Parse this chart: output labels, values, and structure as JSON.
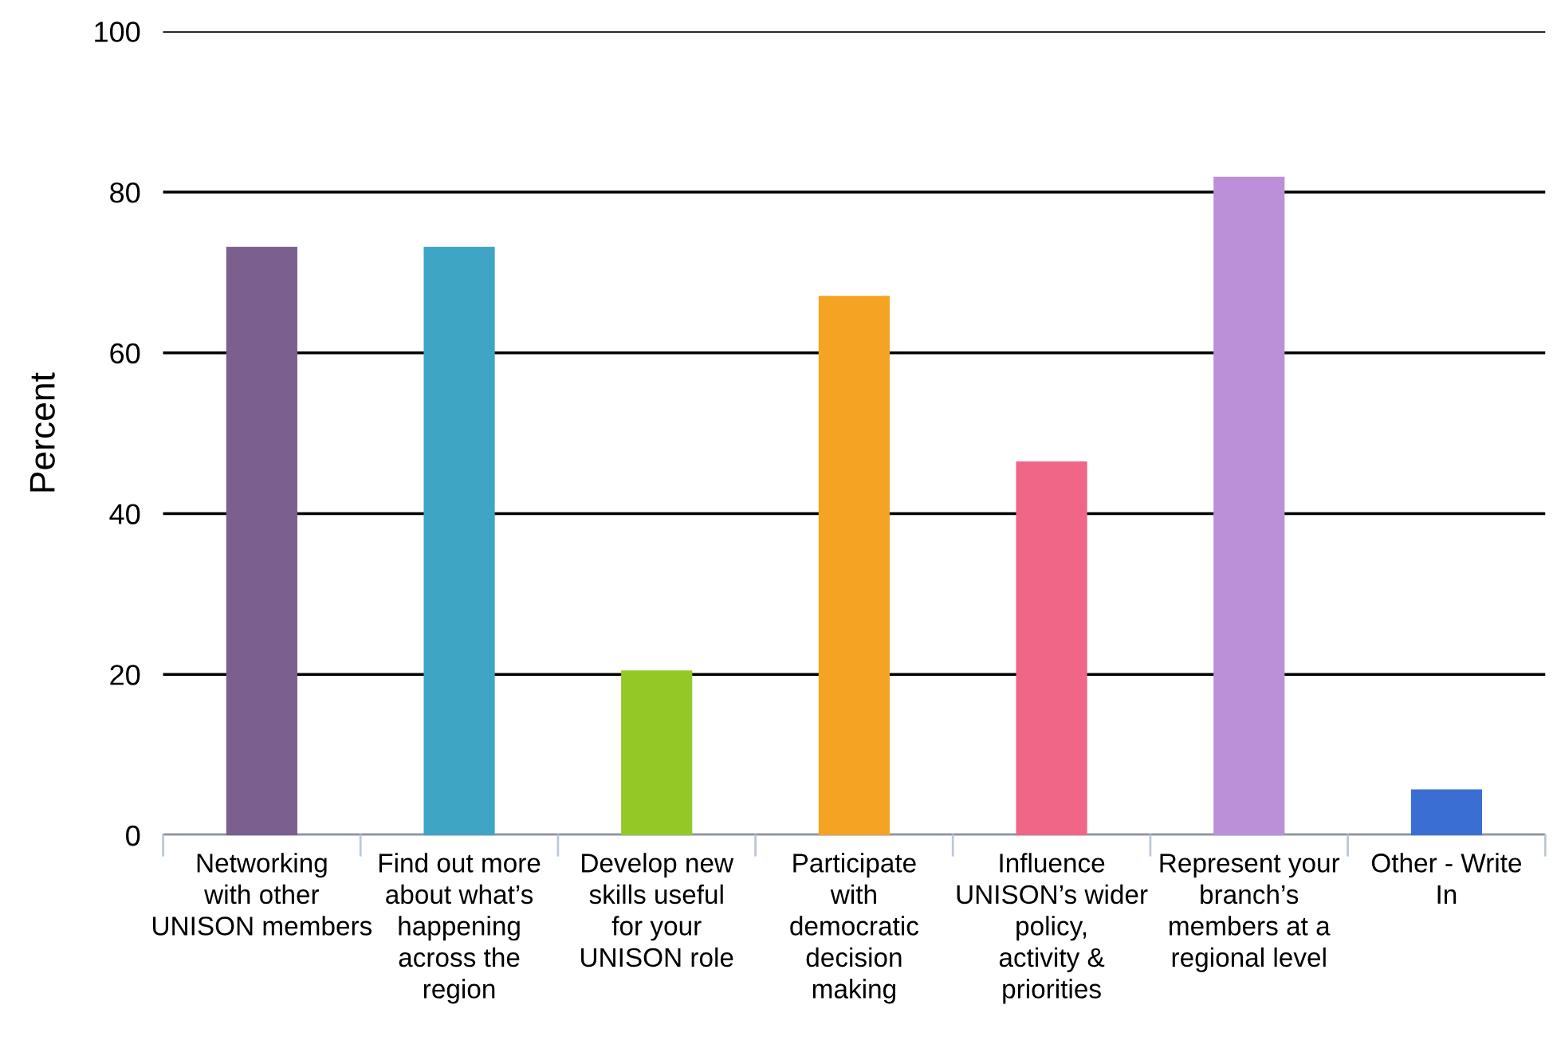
{
  "chart_data": {
    "type": "bar",
    "ylabel": "Percent",
    "categories": [
      "Networking with other UNISON members",
      "Find out more about what’s happening across the region",
      "Develop new skills useful for your UNISON role",
      "Participate with democratic decision making",
      "Influence UNISON’s wider policy, activity & priorities",
      "Represent your branch’s members at a regional level",
      "Other - Write In"
    ],
    "values": [
      73.2,
      73.2,
      20.5,
      67.1,
      46.5,
      81.9,
      5.7
    ],
    "colors": [
      "#7b5f8e",
      "#3ea5c4",
      "#93c927",
      "#f4a322",
      "#ef6687",
      "#bc90d9",
      "#3b6ed2"
    ],
    "ylim": [
      0,
      100
    ],
    "yticks": [
      0,
      20,
      40,
      60,
      80,
      100
    ],
    "grid": "y"
  }
}
